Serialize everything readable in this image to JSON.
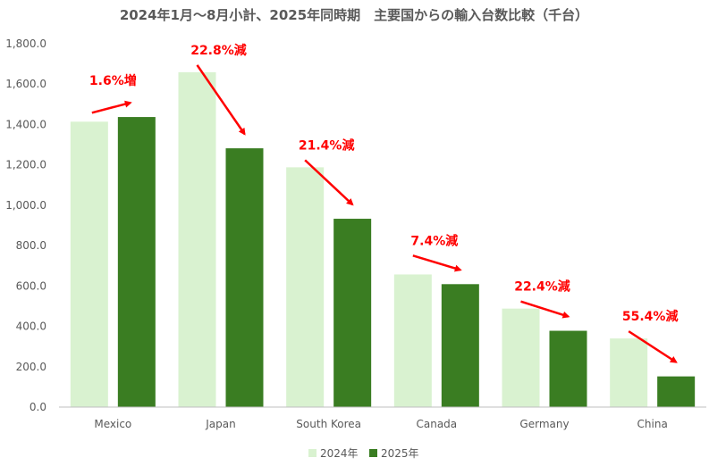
{
  "chart_data": {
    "type": "bar",
    "title": "2024年1月～8月小計、2025年同時期　主要国からの輸入台数比較（千台）",
    "categories": [
      "Mexico",
      "Japan",
      "South Korea",
      "Canada",
      "Germany",
      "China"
    ],
    "series": [
      {
        "name": "2024年",
        "values": [
          1414,
          1659,
          1188,
          657,
          488,
          340
        ],
        "color": "#d9f2d0"
      },
      {
        "name": "2025年",
        "values": [
          1437,
          1282,
          933,
          609,
          378,
          152
        ],
        "color": "#3a7d22"
      }
    ],
    "ylim": [
      0,
      1800
    ],
    "yticks": [
      0,
      200,
      400,
      600,
      800,
      1000,
      1200,
      1400,
      1600,
      1800
    ],
    "ytick_labels": [
      "0.0",
      "200.0",
      "400.0",
      "600.0",
      "800.0",
      "1,000.0",
      "1,200.0",
      "1,400.0",
      "1,600.0",
      "1,800.0"
    ],
    "grid": false,
    "legend_position": "bottom",
    "annotations": [
      "1.6%増",
      "22.8%減",
      "21.4%減",
      "7.4%減",
      "22.4%減",
      "55.4%減"
    ],
    "annotation_color": "#ff0000"
  }
}
